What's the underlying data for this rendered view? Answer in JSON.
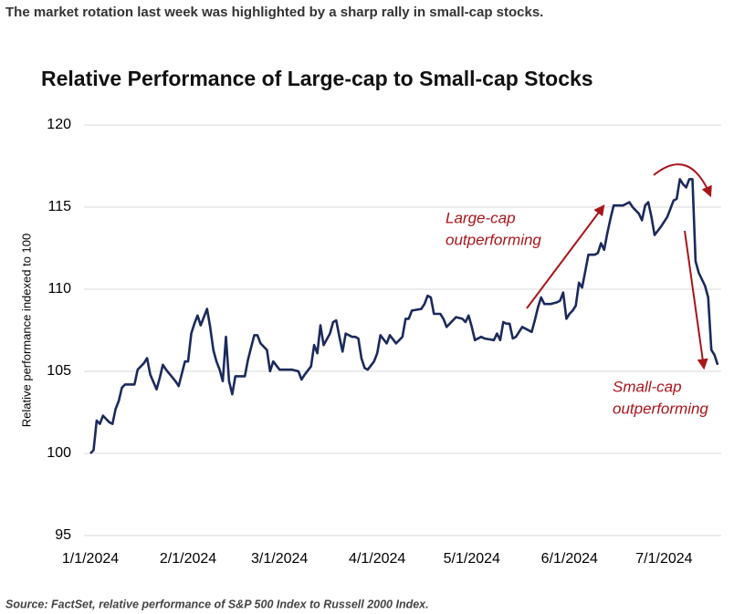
{
  "header": "The market rotation last week was highlighted by a sharp rally in small-cap stocks.",
  "source": "Source: FactSet, relative performance of S&P 500 Index to Russell 2000 Index.",
  "chart_data": {
    "type": "line",
    "title": "Relative Performance of Large-cap to Small-cap Stocks",
    "y_label": "Relative performance indexed to 100",
    "x": [
      "1/1/2024",
      "1/2/2024",
      "1/3/2024",
      "1/4/2024",
      "1/5/2024",
      "1/7/2024",
      "1/8/2024",
      "1/9/2024",
      "1/10/2024",
      "1/11/2024",
      "1/12/2024",
      "1/15/2024",
      "1/16/2024",
      "1/18/2024",
      "1/19/2024",
      "1/20/2024",
      "1/22/2024",
      "1/23/2024",
      "1/24/2024",
      "1/25/2024",
      "1/28/2024",
      "1/29/2024",
      "1/31/2024",
      "2/1/2024",
      "2/2/2024",
      "2/3/2024",
      "2/4/2024",
      "2/5/2024",
      "2/7/2024",
      "2/8/2024",
      "2/9/2024",
      "2/10/2024",
      "2/11/2024",
      "2/12/2024",
      "2/13/2024",
      "2/14/2024",
      "2/15/2024",
      "2/16/2024",
      "2/19/2024",
      "2/20/2024",
      "2/22/2024",
      "2/23/2024",
      "2/24/2024",
      "2/26/2024",
      "2/27/2024",
      "2/28/2024",
      "3/1/2024",
      "3/5/2024",
      "3/7/2024",
      "3/8/2024",
      "3/9/2024",
      "3/11/2024",
      "3/12/2024",
      "3/13/2024",
      "3/14/2024",
      "3/15/2024",
      "3/17/2024",
      "3/18/2024",
      "3/19/2024",
      "3/20/2024",
      "3/21/2024",
      "3/22/2024",
      "3/24/2024",
      "3/25/2024",
      "3/26/2024",
      "3/27/2024",
      "3/28/2024",
      "3/29/2024",
      "3/31/2024",
      "4/1/2024",
      "4/2/2024",
      "4/4/2024",
      "4/5/2024",
      "4/7/2024",
      "4/9/2024",
      "4/10/2024",
      "4/11/2024",
      "4/12/2024",
      "4/15/2024",
      "4/16/2024",
      "4/17/2024",
      "4/18/2024",
      "4/19/2024",
      "4/21/2024",
      "4/22/2024",
      "4/23/2024",
      "4/24/2024",
      "4/26/2024",
      "4/28/2024",
      "4/29/2024",
      "4/30/2024",
      "5/1/2024",
      "5/2/2024",
      "5/4/2024",
      "5/5/2024",
      "5/8/2024",
      "5/9/2024",
      "5/10/2024",
      "5/11/2024",
      "5/12/2024",
      "5/13/2024",
      "5/14/2024",
      "5/15/2024",
      "5/17/2024",
      "5/18/2024",
      "5/20/2024",
      "5/21/2024",
      "5/22/2024",
      "5/23/2024",
      "5/24/2024",
      "5/26/2024",
      "5/28/2024",
      "5/29/2024",
      "5/30/2024",
      "5/31/2024",
      "6/1/2024",
      "6/2/2024",
      "6/3/2024",
      "6/4/2024",
      "6/5/2024",
      "6/6/2024",
      "6/7/2024",
      "6/9/2024",
      "6/10/2024",
      "6/11/2024",
      "6/12/2024",
      "6/13/2024",
      "6/14/2024",
      "6/15/2024",
      "6/16/2024",
      "6/18/2024",
      "6/19/2024",
      "6/20/2024",
      "6/21/2024",
      "6/23/2024",
      "6/24/2024",
      "6/25/2024",
      "6/26/2024",
      "6/27/2024",
      "6/28/2024",
      "6/30/2024",
      "7/2/2024",
      "7/4/2024",
      "7/5/2024",
      "7/6/2024",
      "7/7/2024",
      "7/8/2024",
      "7/9/2024",
      "7/10/2024",
      "7/11/2024",
      "7/12/2024",
      "7/14/2024",
      "7/15/2024",
      "7/16/2024",
      "7/17/2024",
      "7/18/2024"
    ],
    "series": [
      {
        "name": "Relative performance",
        "color": "#1b2a5c",
        "values": [
          100.0,
          100.2,
          102.0,
          101.8,
          102.3,
          101.9,
          101.8,
          102.7,
          103.2,
          104.0,
          104.2,
          104.2,
          105.1,
          105.5,
          105.8,
          104.8,
          103.9,
          104.6,
          105.4,
          105.1,
          104.4,
          104.1,
          105.6,
          105.6,
          107.3,
          107.9,
          108.4,
          107.8,
          108.8,
          107.7,
          106.3,
          105.6,
          105.1,
          104.4,
          107.1,
          104.4,
          103.6,
          104.7,
          104.7,
          105.7,
          107.2,
          107.2,
          106.7,
          106.3,
          105.0,
          105.6,
          105.1,
          105.1,
          105.0,
          104.5,
          104.8,
          105.3,
          106.6,
          106.1,
          107.8,
          106.6,
          107.3,
          108.0,
          108.1,
          107.1,
          106.2,
          107.3,
          107.1,
          107.1,
          107.0,
          105.8,
          105.2,
          105.1,
          105.6,
          106.1,
          107.2,
          106.7,
          107.2,
          106.7,
          107.1,
          108.2,
          108.2,
          108.7,
          108.8,
          109.1,
          109.6,
          109.5,
          108.5,
          108.5,
          108.2,
          107.7,
          107.9,
          108.3,
          108.2,
          108.0,
          108.4,
          107.7,
          106.9,
          107.1,
          107.0,
          106.9,
          107.3,
          106.9,
          108.0,
          107.9,
          107.9,
          107.0,
          107.1,
          107.7,
          107.6,
          107.4,
          108.1,
          108.9,
          109.5,
          109.1,
          109.1,
          109.2,
          109.3,
          109.8,
          108.2,
          108.5,
          108.7,
          109.0,
          110.4,
          110.1,
          111.1,
          112.1,
          112.1,
          112.2,
          112.8,
          112.4,
          113.4,
          114.3,
          115.1,
          115.1,
          115.1,
          115.2,
          115.3,
          115.0,
          114.6,
          114.2,
          115.1,
          115.3,
          114.4,
          113.3,
          113.8,
          114.4,
          115.4,
          115.5,
          116.7,
          116.4,
          116.2,
          116.7,
          116.7,
          111.7,
          111.0,
          110.2,
          109.5,
          106.3,
          106.0,
          105.4
        ]
      }
    ],
    "xlim": [
      "1/1/2024",
      "7/20/2024"
    ],
    "xticks": [
      "1/1/2024",
      "2/1/2024",
      "3/1/2024",
      "4/1/2024",
      "5/1/2024",
      "6/1/2024",
      "7/1/2024"
    ],
    "ylim": [
      95,
      120
    ],
    "yticks": [
      95,
      100,
      105,
      110,
      115,
      120
    ],
    "grid": true,
    "annotations": [
      {
        "lines": [
          "Large-cap",
          "outperforming"
        ],
        "color": "#a8151b"
      },
      {
        "lines": [
          "Small-cap",
          "outperforming"
        ],
        "color": "#a8151b"
      }
    ]
  }
}
